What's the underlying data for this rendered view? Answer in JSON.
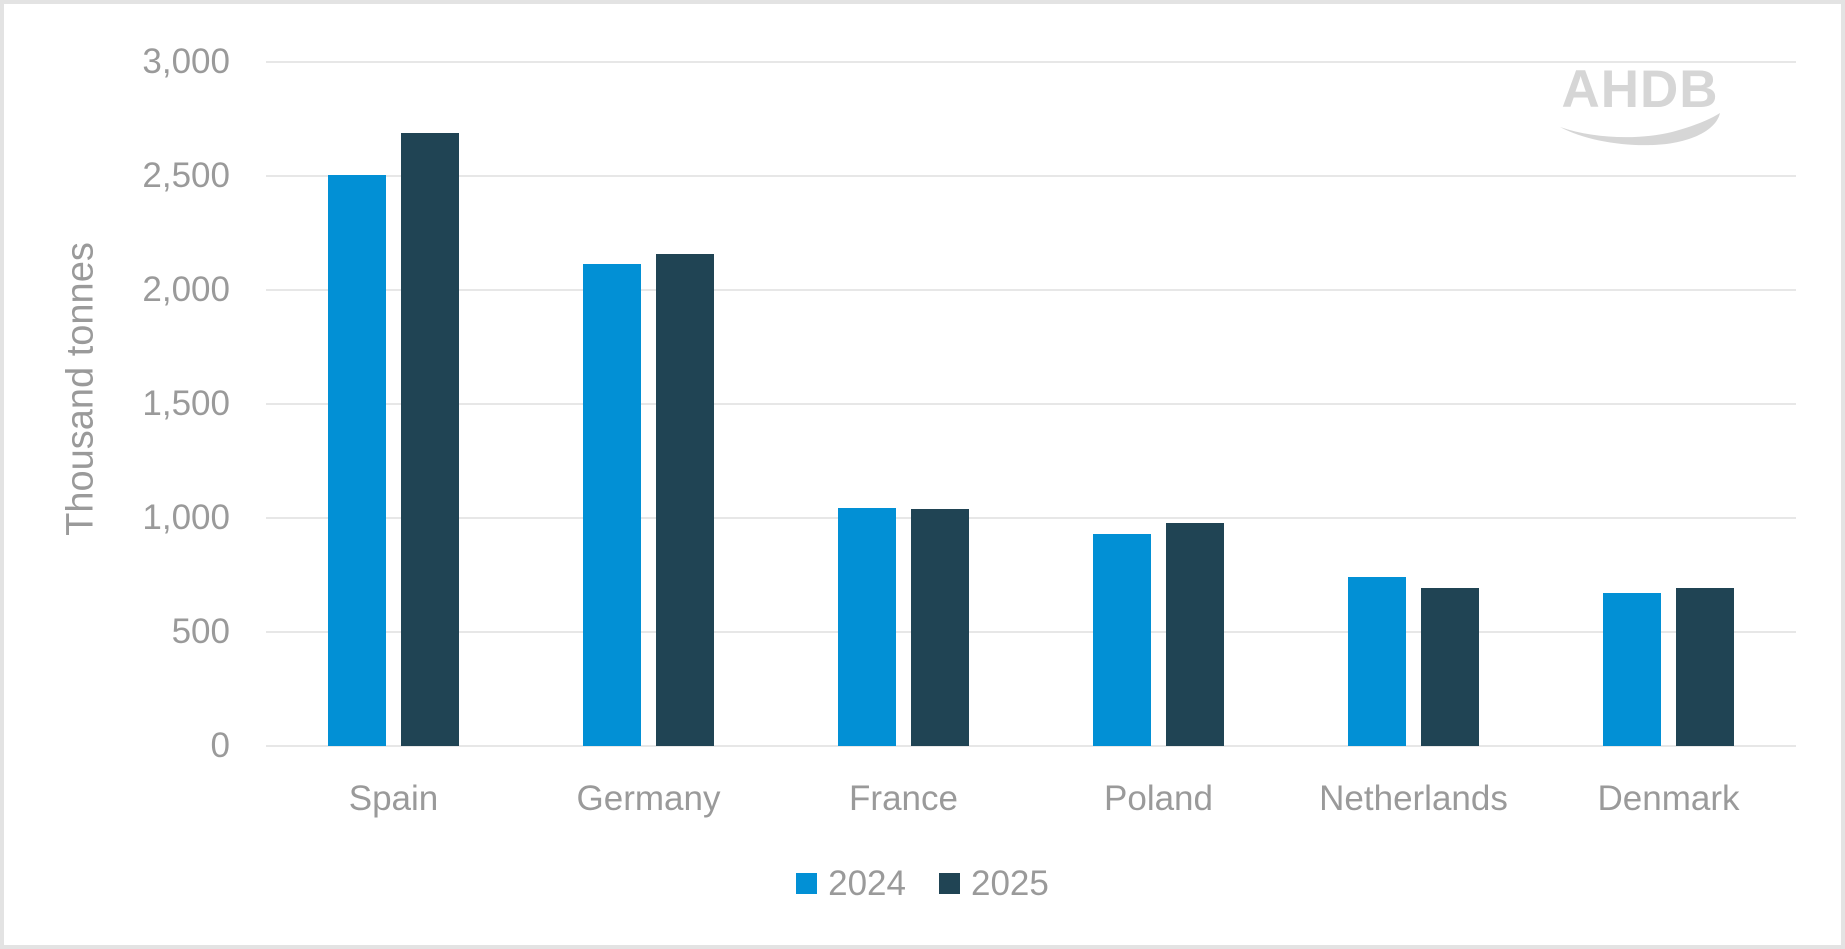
{
  "logo": {
    "text": "AHDB",
    "color": "#d6d6d6"
  },
  "chart_data": {
    "type": "bar",
    "title": "",
    "xlabel": "",
    "ylabel": "Thousand tonnes",
    "categories": [
      "Spain",
      "Germany",
      "France",
      "Poland",
      "Netherlands",
      "Denmark"
    ],
    "series": [
      {
        "name": "2024",
        "color": "#0290d5",
        "values": [
          2505,
          2115,
          1045,
          930,
          740,
          670
        ]
      },
      {
        "name": "2025",
        "color": "#204454",
        "values": [
          2690,
          2160,
          1040,
          980,
          695,
          695
        ]
      }
    ],
    "ylim": [
      0,
      3000
    ],
    "ytick_step": 500,
    "yticks": [
      0,
      500,
      1000,
      1500,
      2000,
      2500,
      3000
    ],
    "ytick_labels": [
      "0",
      "500",
      "1,000",
      "1,500",
      "2,000",
      "2,500",
      "3,000"
    ],
    "grid": true,
    "legend_position": "bottom"
  },
  "colors": {
    "axis_text": "#9a9a9a",
    "gridline": "#e7e7e7",
    "frame_border": "#e3e3e3",
    "background": "#ffffff"
  }
}
